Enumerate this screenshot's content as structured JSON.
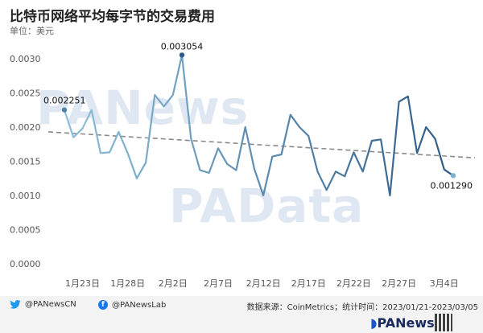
{
  "title": "比特币网络平均每字节的交易费用",
  "unit_label": "单位：美元",
  "footer": {
    "twitter": "@PANewsCN",
    "facebook": "@PANewsLab",
    "source": "数据来源：CoinMetrics；统计时间：2023/01/21-2023/03/05",
    "brand": "PANews",
    "watermark1": "PANews",
    "watermark2": "PAData"
  },
  "colors": {
    "line_start": "#8ec0db",
    "line_end": "#2d5a86",
    "trend": "#8a8a8a"
  },
  "chart_data": {
    "type": "line",
    "x_start": "2023-01-21",
    "x_ticks": [
      "1月23日",
      "1月28日",
      "2月2日",
      "2月7日",
      "2月12日",
      "2月17日",
      "2月22日",
      "2月27日",
      "3月4日"
    ],
    "ylim": [
      0,
      0.003
    ],
    "y_ticks": [
      "0.0000",
      "0.0005",
      "0.0010",
      "0.0015",
      "0.0020",
      "0.0025",
      "0.0030"
    ],
    "values": [
      0.002251,
      0.00185,
      0.00198,
      0.00225,
      0.00162,
      0.00163,
      0.00193,
      0.00162,
      0.00125,
      0.00148,
      0.00247,
      0.0023,
      0.00247,
      0.003054,
      0.00183,
      0.00137,
      0.00133,
      0.00169,
      0.00146,
      0.00137,
      0.002,
      0.00139,
      0.001,
      0.00157,
      0.0016,
      0.00218,
      0.002,
      0.00187,
      0.00135,
      0.00108,
      0.00135,
      0.00128,
      0.00163,
      0.00135,
      0.0018,
      0.00182,
      0.001,
      0.00237,
      0.00245,
      0.00162,
      0.002,
      0.00183,
      0.00138,
      0.00129
    ],
    "trend": [
      0.00193,
      0.00155
    ],
    "annotations": [
      {
        "index": 0,
        "label": "0.002251"
      },
      {
        "index": 13,
        "label": "0.003054"
      },
      {
        "index": 43,
        "label": "0.001290"
      }
    ],
    "grid": false
  }
}
